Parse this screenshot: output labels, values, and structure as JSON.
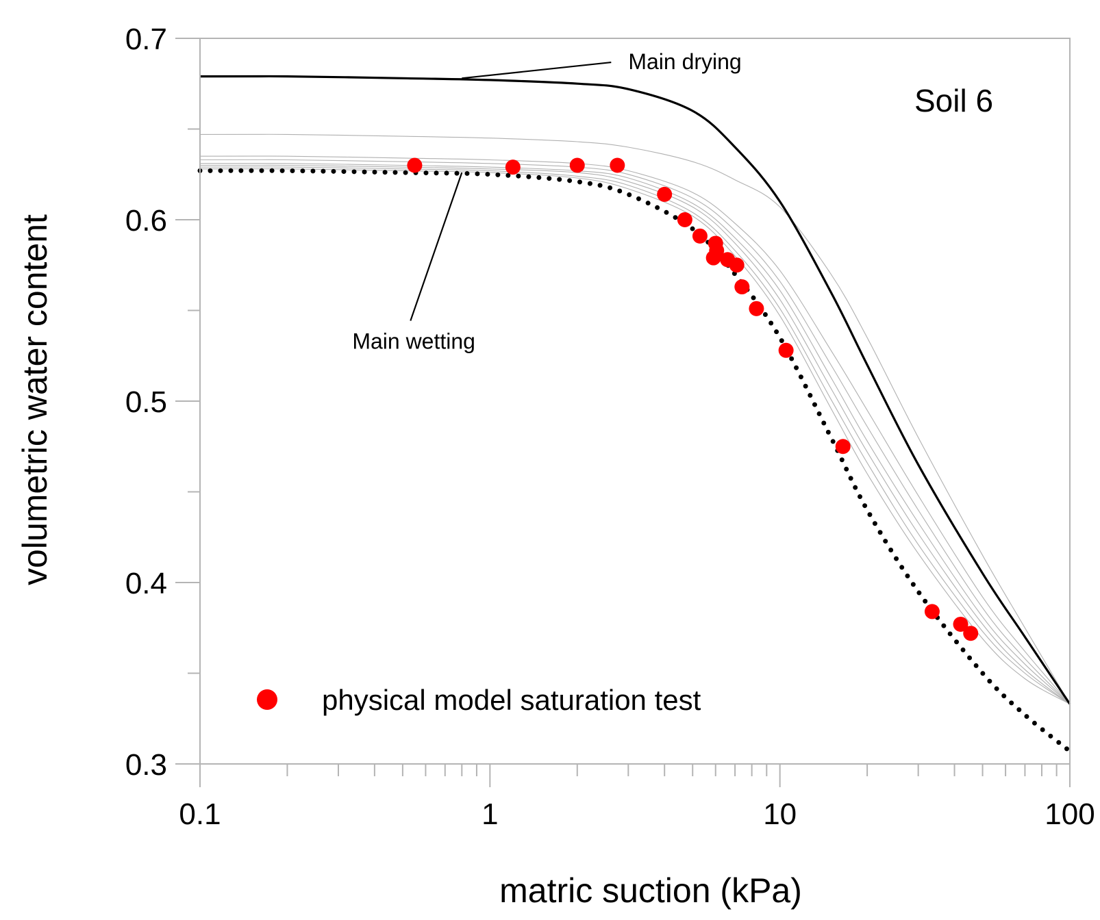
{
  "chart_data": {
    "type": "line",
    "title": "",
    "panel_label": "Soil 6",
    "xlabel": "matric suction (kPa)",
    "ylabel": "volumetric water content",
    "xscale": "log",
    "xlim": [
      0.1,
      100
    ],
    "ylim": [
      0.3,
      0.7
    ],
    "x_ticks": [
      0.1,
      1,
      10,
      100
    ],
    "x_tick_labels": [
      "0.1",
      "1",
      "10",
      "100"
    ],
    "y_ticks": [
      0.3,
      0.4,
      0.5,
      0.6,
      0.7
    ],
    "y_tick_labels": [
      "0.3",
      "0.4",
      "0.5",
      "0.6",
      "0.7"
    ],
    "grid": false,
    "colors": {
      "drying": "#000000",
      "wetting": "#000000",
      "scanning": "#b0b0b0",
      "points": "#ff0000",
      "axis": "#b4b4b4"
    },
    "curve_x": [
      0.1,
      0.2,
      0.5,
      1,
      2,
      3,
      5,
      7,
      10,
      15,
      20,
      30,
      50,
      70,
      100
    ],
    "series": [
      {
        "name": "Main drying",
        "style": "solid-thick",
        "values": [
          0.679,
          0.679,
          0.678,
          0.677,
          0.675,
          0.672,
          0.66,
          0.64,
          0.61,
          0.56,
          0.52,
          0.465,
          0.405,
          0.37,
          0.333
        ]
      },
      {
        "name": "scanning curve 1",
        "style": "thin",
        "values": [
          0.647,
          0.647,
          0.646,
          0.645,
          0.643,
          0.64,
          0.632,
          0.622,
          0.607,
          0.57,
          0.535,
          0.48,
          0.415,
          0.375,
          0.333
        ]
      },
      {
        "name": "scanning curve 2",
        "style": "thin",
        "values": [
          0.635,
          0.635,
          0.634,
          0.633,
          0.631,
          0.627,
          0.615,
          0.598,
          0.572,
          0.528,
          0.495,
          0.448,
          0.392,
          0.362,
          0.333
        ]
      },
      {
        "name": "scanning curve 3",
        "style": "thin",
        "values": [
          0.633,
          0.633,
          0.632,
          0.631,
          0.629,
          0.625,
          0.612,
          0.594,
          0.566,
          0.52,
          0.486,
          0.44,
          0.386,
          0.358,
          0.333
        ]
      },
      {
        "name": "scanning curve 4",
        "style": "thin",
        "values": [
          0.631,
          0.631,
          0.63,
          0.629,
          0.627,
          0.623,
          0.609,
          0.59,
          0.561,
          0.513,
          0.478,
          0.433,
          0.381,
          0.355,
          0.333
        ]
      },
      {
        "name": "scanning curve 5",
        "style": "thin",
        "values": [
          0.63,
          0.63,
          0.629,
          0.628,
          0.626,
          0.621,
          0.607,
          0.587,
          0.556,
          0.507,
          0.472,
          0.427,
          0.377,
          0.352,
          0.333
        ]
      },
      {
        "name": "scanning curve 6",
        "style": "thin",
        "values": [
          0.629,
          0.629,
          0.628,
          0.627,
          0.624,
          0.619,
          0.604,
          0.583,
          0.551,
          0.501,
          0.466,
          0.421,
          0.373,
          0.35,
          0.333
        ]
      },
      {
        "name": "scanning curve 7",
        "style": "thin",
        "values": [
          0.628,
          0.628,
          0.627,
          0.626,
          0.623,
          0.617,
          0.602,
          0.58,
          0.547,
          0.496,
          0.46,
          0.416,
          0.369,
          0.347,
          0.333
        ]
      },
      {
        "name": "Main wetting",
        "style": "dotted-thick",
        "values": [
          0.627,
          0.627,
          0.626,
          0.625,
          0.621,
          0.614,
          0.595,
          0.57,
          0.535,
          0.48,
          0.44,
          0.395,
          0.35,
          0.327,
          0.307
        ]
      }
    ],
    "points": {
      "name": "physical model saturation test",
      "x": [
        0.55,
        1.2,
        2.0,
        2.75,
        4.0,
        4.7,
        5.3,
        6.0,
        6.05,
        5.9,
        6.6,
        7.1,
        7.4,
        8.3,
        10.5,
        16.5,
        33.5,
        42.0,
        45.5
      ],
      "y": [
        0.63,
        0.629,
        0.63,
        0.63,
        0.614,
        0.6,
        0.591,
        0.587,
        0.583,
        0.579,
        0.578,
        0.575,
        0.563,
        0.551,
        0.528,
        0.475,
        0.384,
        0.377,
        0.372
      ]
    },
    "annotations": [
      {
        "text": "Main drying",
        "x": 0.8,
        "y": 0.678,
        "text_x": 3.0,
        "text_y": 0.683
      },
      {
        "text": "Main wetting",
        "x": 0.8,
        "y": 0.626,
        "text_x": 0.35,
        "text_y": 0.533
      }
    ],
    "legend": {
      "position": "bottom-left",
      "label": "physical model saturation test"
    }
  }
}
